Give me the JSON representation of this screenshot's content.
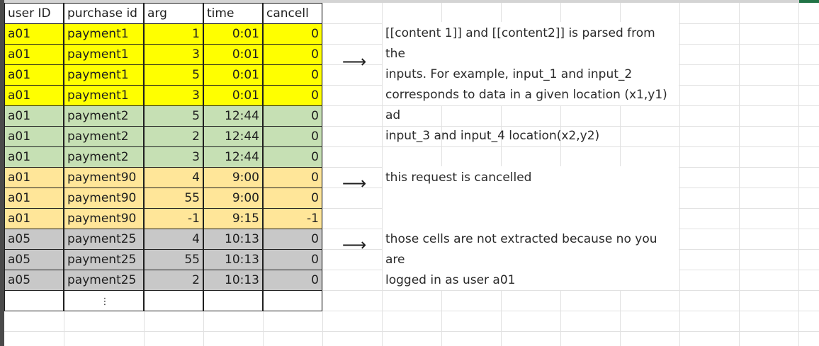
{
  "sheet": {
    "headers": [
      "user ID",
      "purchase id",
      "arg",
      "time",
      "cancell"
    ],
    "rows": [
      {
        "user": "a01",
        "purchase": "payment1",
        "arg": "1",
        "time": "0:01",
        "cancel": "0",
        "fill": "#ffff00"
      },
      {
        "user": "a01",
        "purchase": "payment1",
        "arg": "3",
        "time": "0:01",
        "cancel": "0",
        "fill": "#ffff00"
      },
      {
        "user": "a01",
        "purchase": "payment1",
        "arg": "5",
        "time": "0:01",
        "cancel": "0",
        "fill": "#ffff00"
      },
      {
        "user": "a01",
        "purchase": "payment1",
        "arg": "3",
        "time": "0:01",
        "cancel": "0",
        "fill": "#ffff00"
      },
      {
        "user": "a01",
        "purchase": "payment2",
        "arg": "5",
        "time": "12:44",
        "cancel": "0",
        "fill": "#c6e0b4"
      },
      {
        "user": "a01",
        "purchase": "payment2",
        "arg": "2",
        "time": "12:44",
        "cancel": "0",
        "fill": "#c6e0b4"
      },
      {
        "user": "a01",
        "purchase": "payment2",
        "arg": "3",
        "time": "12:44",
        "cancel": "0",
        "fill": "#c6e0b4"
      },
      {
        "user": "a01",
        "purchase": "payment90",
        "arg": "4",
        "time": "9:00",
        "cancel": "0",
        "fill": "#ffe699"
      },
      {
        "user": "a01",
        "purchase": "payment90",
        "arg": "55",
        "time": "9:00",
        "cancel": "0",
        "fill": "#ffe699"
      },
      {
        "user": "a01",
        "purchase": "payment90",
        "arg": "-1",
        "time": "9:15",
        "cancel": "-1",
        "fill": "#ffe699"
      },
      {
        "user": "a05",
        "purchase": "payment25",
        "arg": "4",
        "time": "10:13",
        "cancel": "0",
        "fill": "#c8c8c8"
      },
      {
        "user": "a05",
        "purchase": "payment25",
        "arg": "55",
        "time": "10:13",
        "cancel": "0",
        "fill": "#c8c8c8"
      },
      {
        "user": "a05",
        "purchase": "payment25",
        "arg": "2",
        "time": "10:13",
        "cancel": "0",
        "fill": "#c8c8c8"
      }
    ],
    "continuation": "⋮"
  },
  "annotations": {
    "arrow_glyph": "⟶",
    "note1": [
      "[[content 1]] and [[content2]] is parsed from the",
      "inputs. For example, input_1 and input_2",
      "corresponds to data in a given location (x1,y1) ad",
      "input_3 and input_4 location(x2,y2)"
    ],
    "note2": [
      "this request is cancelled"
    ],
    "note3": [
      "those cells are not extracted because no you are",
      "logged in as user a01"
    ]
  },
  "colors": {
    "yellow": "#ffff00",
    "green": "#c6e0b4",
    "orange": "#ffe699",
    "gray": "#c8c8c8",
    "excel_accent": "#217346"
  }
}
